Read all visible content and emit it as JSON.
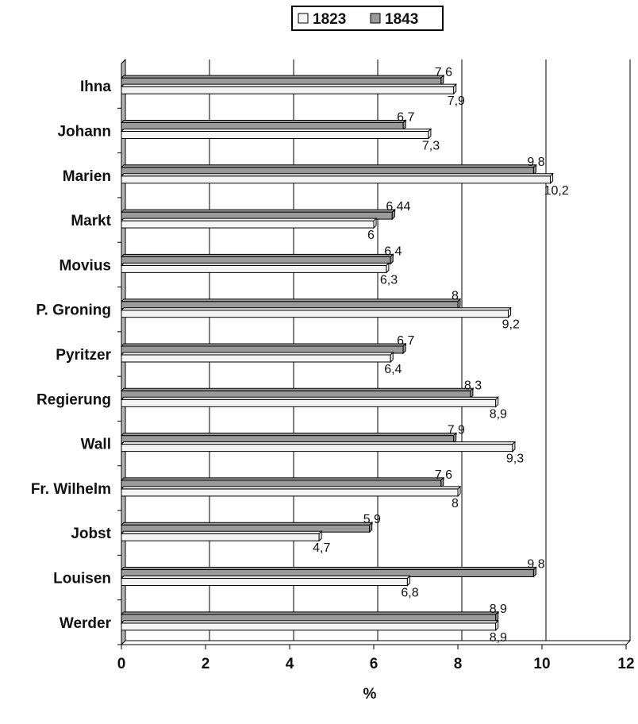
{
  "chart_data": {
    "type": "bar",
    "orientation": "horizontal",
    "categories": [
      "Ihna",
      "Johann",
      "Marien",
      "Markt",
      "Movius",
      "P. Groning",
      "Pyritzer",
      "Regierung",
      "Wall",
      "Fr. Wilhelm",
      "Jobst",
      "Louisen",
      "Werder"
    ],
    "series": [
      {
        "name": "1823",
        "values": [
          7.9,
          7.3,
          10.2,
          6,
          6.3,
          9.2,
          6.4,
          8.9,
          9.3,
          8,
          4.7,
          6.8,
          8.9
        ],
        "labels": [
          "7,9",
          "7,3",
          "10,2",
          "6",
          "6,3",
          "9,2",
          "6,4",
          "8,9",
          "9,3",
          "8",
          "4,7",
          "6,8",
          "8,9"
        ],
        "color": "#f4f4f4"
      },
      {
        "name": "1843",
        "values": [
          7.6,
          6.7,
          9.8,
          6.44,
          6.4,
          8,
          6.7,
          8.3,
          7.9,
          7.6,
          5.9,
          9.8,
          8.9
        ],
        "labels": [
          "7,6",
          "6,7",
          "9,8",
          "6,44",
          "6,4",
          "8",
          "6,7",
          "8,3",
          "7,9",
          "7,6",
          "5,9",
          "9,8",
          "8,9"
        ],
        "color": "#9a9a9a"
      }
    ],
    "xlabel": "%",
    "ylabel": "",
    "xlim": [
      0,
      12
    ],
    "xticks": [
      "0",
      "2",
      "4",
      "6",
      "8",
      "10",
      "12"
    ],
    "grid": "vertical",
    "legend_position": "top-center"
  }
}
